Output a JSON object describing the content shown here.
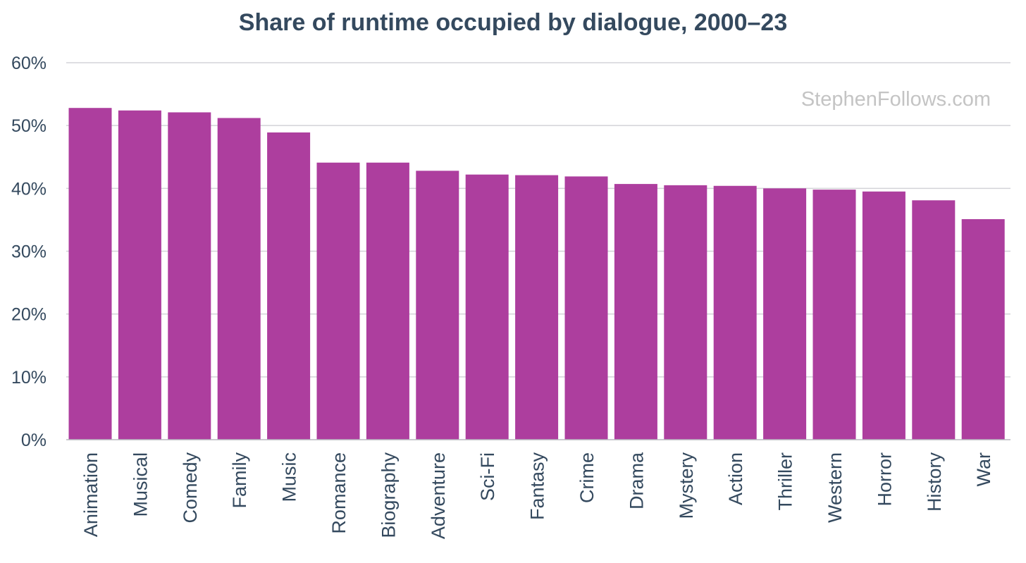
{
  "chart_data": {
    "type": "bar",
    "title": "Share of runtime occupied by dialogue, 2000–23",
    "xlabel": "",
    "ylabel": "",
    "categories": [
      "Animation",
      "Musical",
      "Comedy",
      "Family",
      "Music",
      "Romance",
      "Biography",
      "Adventure",
      "Sci-Fi",
      "Fantasy",
      "Crime",
      "Drama",
      "Mystery",
      "Action",
      "Thriller",
      "Western",
      "Horror",
      "History",
      "War"
    ],
    "values": [
      52.8,
      52.4,
      52.1,
      51.2,
      48.9,
      44.1,
      44.1,
      42.8,
      42.2,
      42.1,
      41.9,
      40.7,
      40.5,
      40.4,
      40.0,
      39.8,
      39.5,
      38.1,
      35.1
    ],
    "ylim": [
      0,
      60
    ],
    "yticks": [
      0,
      10,
      20,
      30,
      40,
      50,
      60
    ],
    "ytick_labels": [
      "0%",
      "10%",
      "20%",
      "30%",
      "40%",
      "50%",
      "60%"
    ],
    "grid": true,
    "legend": "none",
    "bar_color": "#ad3e9e",
    "watermark": "StephenFollows.com"
  }
}
